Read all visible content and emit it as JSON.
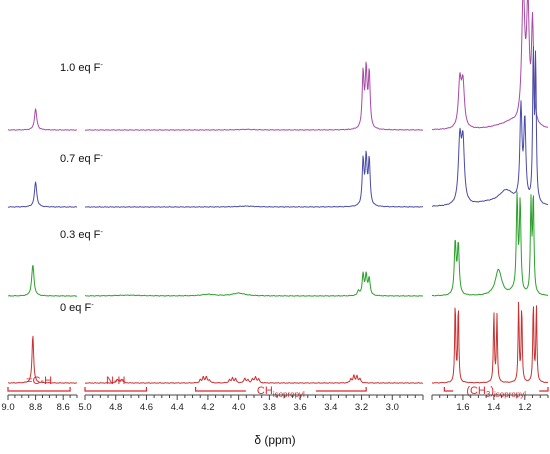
{
  "chart_data": {
    "type": "line",
    "xlabel": "δ (ppm)",
    "x_direction": "reversed",
    "axis_segments": [
      {
        "xlim": [
          9.0,
          8.5
        ],
        "ticks": [
          "9.0",
          "8.8",
          "8.6"
        ]
      },
      {
        "xlim": [
          5.0,
          2.8
        ],
        "ticks": [
          "5.0",
          "4.8",
          "4.6",
          "4.4",
          "4.2",
          "4.0",
          "3.8",
          "3.6",
          "3.4",
          "3.2",
          "3.0"
        ]
      },
      {
        "xlim": [
          1.8,
          1.05
        ],
        "ticks": [
          "1.6",
          "1.4",
          "1.2"
        ]
      }
    ],
    "series": [
      {
        "name": "1.0 eq F⁻",
        "name_main": "1.0 eq F",
        "name_sup": "-",
        "color": "#a64ca6",
        "broad": [
          [
            3.95,
            0.06,
            0.6
          ],
          [
            1.29,
            0.05,
            5.0
          ],
          [
            1.36,
            0.09,
            3.0
          ]
        ],
        "peaks": [
          [
            8.8,
            0.01,
            21
          ],
          [
            3.19,
            0.007,
            55
          ],
          [
            3.17,
            0.007,
            57
          ],
          [
            3.15,
            0.007,
            55
          ],
          [
            1.62,
            0.011,
            46
          ],
          [
            1.6,
            0.011,
            44
          ],
          [
            1.21,
            0.012,
            130
          ],
          [
            1.18,
            0.01,
            115
          ],
          [
            1.15,
            0.008,
            100
          ]
        ]
      },
      {
        "name": "0.7 eq F⁻",
        "name_main": "0.7 eq F",
        "name_sup": "-",
        "color": "#4a4aa8",
        "broad": [
          [
            3.95,
            0.06,
            0.9
          ],
          [
            1.32,
            0.06,
            15.0
          ],
          [
            1.45,
            0.1,
            3.0
          ]
        ],
        "peaks": [
          [
            8.8,
            0.01,
            25
          ],
          [
            3.19,
            0.007,
            45
          ],
          [
            3.17,
            0.007,
            47
          ],
          [
            3.15,
            0.007,
            45
          ],
          [
            1.62,
            0.011,
            63
          ],
          [
            1.6,
            0.011,
            60
          ],
          [
            1.225,
            0.008,
            93
          ],
          [
            1.2,
            0.008,
            80
          ],
          [
            1.145,
            0.005,
            148
          ],
          [
            1.13,
            0.005,
            140
          ]
        ]
      },
      {
        "name": "0.3 eq F⁻",
        "name_main": "0.3 eq F",
        "name_sup": "-",
        "color": "#2ca02c",
        "broad": [
          [
            4.2,
            0.05,
            1.6
          ],
          [
            4.0,
            0.05,
            2.8
          ],
          [
            4.72,
            0.1,
            0.8
          ],
          [
            1.37,
            0.025,
            26.0
          ],
          [
            1.28,
            0.02,
            3.0
          ]
        ],
        "peaks": [
          [
            8.82,
            0.01,
            31
          ],
          [
            3.22,
            0.007,
            5
          ],
          [
            3.19,
            0.007,
            21
          ],
          [
            3.17,
            0.007,
            20
          ],
          [
            3.15,
            0.007,
            17
          ],
          [
            1.65,
            0.007,
            52
          ],
          [
            1.63,
            0.007,
            50
          ],
          [
            1.25,
            0.006,
            95
          ],
          [
            1.23,
            0.006,
            90
          ],
          [
            1.16,
            0.005,
            90
          ],
          [
            1.145,
            0.005,
            97
          ]
        ]
      },
      {
        "name": "0 eq F⁻",
        "name_main": "0 eq F",
        "name_sup": "-",
        "color": "#c83232",
        "broad": [],
        "peaks": [
          [
            8.82,
            0.007,
            48
          ],
          [
            4.79,
            0.008,
            3.5
          ],
          [
            4.76,
            0.008,
            3.5
          ],
          [
            4.25,
            0.006,
            3
          ],
          [
            4.23,
            0.006,
            6
          ],
          [
            4.21,
            0.006,
            6
          ],
          [
            4.19,
            0.006,
            3
          ],
          [
            4.06,
            0.006,
            3
          ],
          [
            4.04,
            0.006,
            5
          ],
          [
            4.02,
            0.006,
            4
          ],
          [
            3.96,
            0.006,
            5
          ],
          [
            3.94,
            0.006,
            3
          ],
          [
            3.91,
            0.006,
            4
          ],
          [
            3.89,
            0.006,
            6
          ],
          [
            3.87,
            0.006,
            4
          ],
          [
            3.27,
            0.006,
            4
          ],
          [
            3.25,
            0.006,
            7
          ],
          [
            3.23,
            0.006,
            7
          ],
          [
            3.21,
            0.006,
            4
          ],
          [
            1.65,
            0.004,
            80
          ],
          [
            1.63,
            0.004,
            77
          ],
          [
            1.4,
            0.004,
            70
          ],
          [
            1.38,
            0.004,
            67
          ],
          [
            1.24,
            0.004,
            80
          ],
          [
            1.22,
            0.004,
            76
          ],
          [
            1.145,
            0.004,
            80
          ],
          [
            1.125,
            0.004,
            76
          ]
        ]
      }
    ],
    "annotations": [
      {
        "id": "ch",
        "text": "=C-H",
        "bracket_x": [
          9.0,
          8.55
        ]
      },
      {
        "id": "nh",
        "text": "N-H",
        "bracket_x": [
          5.0,
          4.6
        ]
      },
      {
        "id": "chiso",
        "text": "CH",
        "sub": "isopropyl",
        "bracket_x": [
          4.28,
          3.17
        ]
      },
      {
        "id": "ch3iso",
        "text": "(CH",
        "text2": ")",
        "sub1": "3",
        "sub2": "isopropyl",
        "bracket_x": [
          1.72,
          1.05
        ]
      }
    ]
  }
}
